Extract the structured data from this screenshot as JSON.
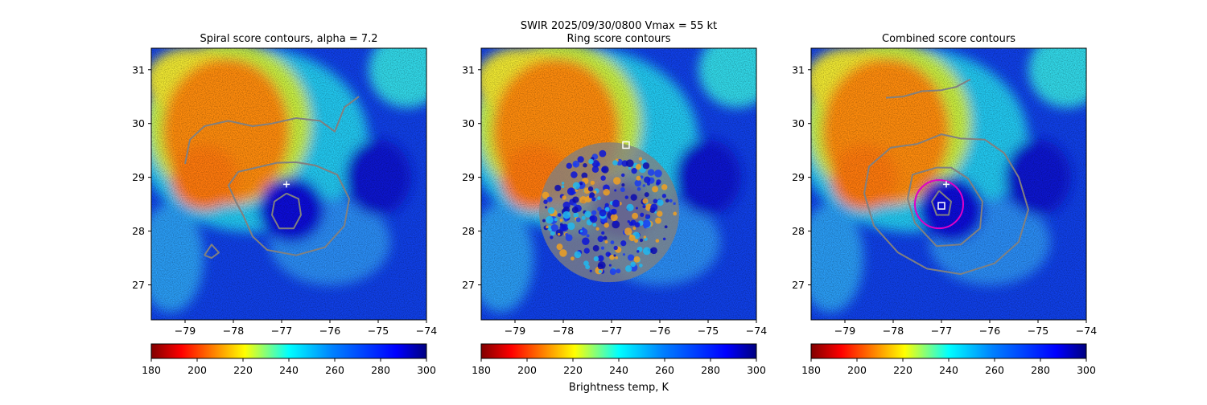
{
  "figure": {
    "suptitle_line1": "SWIR  2025/09/30/0800    Vmax = 55 kt",
    "colorbar_label": "Brightness temp, K"
  },
  "chart_data": [
    {
      "type": "heatmap",
      "title": "Spiral score contours, alpha =  7.2",
      "x_ticks": [
        "−79",
        "−78",
        "−77",
        "−76",
        "−75",
        "−74"
      ],
      "x_tick_values": [
        -79,
        -78,
        -77,
        -76,
        -75,
        -74
      ],
      "y_ticks": [
        "27",
        "28",
        "29",
        "30",
        "31"
      ],
      "y_tick_values": [
        27,
        28,
        29,
        30,
        31
      ],
      "xlim": [
        -79.7,
        -74.0
      ],
      "ylim": [
        26.35,
        31.4
      ],
      "markers": [
        {
          "symbol": "plus",
          "lon": -76.9,
          "lat": 28.87,
          "color": "#ffffff"
        }
      ],
      "contours": [
        {
          "name": "outer",
          "color": "#808080",
          "points": [
            [
              -79.0,
              29.25
            ],
            [
              -78.9,
              29.7
            ],
            [
              -78.6,
              29.95
            ],
            [
              -78.1,
              30.05
            ],
            [
              -77.6,
              29.95
            ],
            [
              -77.2,
              30.0
            ],
            [
              -76.7,
              30.1
            ],
            [
              -76.2,
              30.05
            ],
            [
              -75.9,
              29.85
            ],
            [
              -75.7,
              30.3
            ],
            [
              -75.4,
              30.5
            ]
          ]
        },
        {
          "name": "ring",
          "color": "#808080",
          "points": [
            [
              -77.1,
              29.27
            ],
            [
              -77.9,
              29.1
            ],
            [
              -78.1,
              28.85
            ],
            [
              -77.95,
              28.55
            ],
            [
              -77.8,
              28.3
            ],
            [
              -77.6,
              27.9
            ],
            [
              -77.3,
              27.65
            ],
            [
              -76.7,
              27.55
            ],
            [
              -76.1,
              27.7
            ],
            [
              -75.7,
              28.1
            ],
            [
              -75.6,
              28.6
            ],
            [
              -75.85,
              29.05
            ],
            [
              -76.3,
              29.22
            ],
            [
              -76.7,
              29.28
            ],
            [
              -77.1,
              29.27
            ]
          ]
        },
        {
          "name": "inner",
          "color": "#808080",
          "points": [
            [
              -76.9,
              28.7
            ],
            [
              -77.15,
              28.55
            ],
            [
              -77.2,
              28.3
            ],
            [
              -77.05,
              28.05
            ],
            [
              -76.75,
              28.05
            ],
            [
              -76.6,
              28.3
            ],
            [
              -76.65,
              28.6
            ],
            [
              -76.9,
              28.7
            ]
          ]
        },
        {
          "name": "blob",
          "color": "#808080",
          "points": [
            [
              -78.6,
              27.55
            ],
            [
              -78.45,
              27.75
            ],
            [
              -78.3,
              27.6
            ],
            [
              -78.45,
              27.5
            ],
            [
              -78.6,
              27.55
            ]
          ]
        }
      ],
      "colorbar": {
        "ticks": [
          "180",
          "200",
          "220",
          "240",
          "260",
          "280",
          "300"
        ],
        "tick_values": [
          180,
          200,
          220,
          240,
          260,
          280,
          300
        ],
        "range": [
          180,
          300
        ],
        "colormap": "jet_r"
      }
    },
    {
      "type": "heatmap",
      "title": "Ring score contours",
      "x_ticks": [
        "−79",
        "−78",
        "−77",
        "−76",
        "−75",
        "−74"
      ],
      "x_tick_values": [
        -79,
        -78,
        -77,
        -76,
        -75,
        -74
      ],
      "y_ticks": [
        "27",
        "28",
        "29",
        "30",
        "31"
      ],
      "y_tick_values": [
        27,
        28,
        29,
        30,
        31
      ],
      "xlim": [
        -79.7,
        -74.0
      ],
      "ylim": [
        26.35,
        31.4
      ],
      "markers": [
        {
          "symbol": "square",
          "lon": -76.7,
          "lat": 29.6,
          "color": "#ffffff"
        }
      ],
      "ring_region": {
        "center_lon": -77.05,
        "center_lat": 28.35,
        "radius_deg": 1.45
      },
      "colorbar": {
        "ticks": [
          "180",
          "200",
          "220",
          "240",
          "260",
          "280",
          "300"
        ],
        "tick_values": [
          180,
          200,
          220,
          240,
          260,
          280,
          300
        ],
        "range": [
          180,
          300
        ],
        "colormap": "jet_r"
      }
    },
    {
      "type": "heatmap",
      "title": "Combined score contours",
      "x_ticks": [
        "−79",
        "−78",
        "−77",
        "−76",
        "−75",
        "−74"
      ],
      "x_tick_values": [
        -79,
        -78,
        -77,
        -76,
        -75,
        -74
      ],
      "y_ticks": [
        "27",
        "28",
        "29",
        "30",
        "31"
      ],
      "y_tick_values": [
        27,
        28,
        29,
        30,
        31
      ],
      "xlim": [
        -79.7,
        -74.0
      ],
      "ylim": [
        26.35,
        31.4
      ],
      "markers": [
        {
          "symbol": "plus",
          "lon": -76.9,
          "lat": 28.87,
          "color": "#ffffff"
        },
        {
          "symbol": "square",
          "lon": -77.0,
          "lat": 28.47,
          "color": "#ffffff"
        }
      ],
      "circle": {
        "center_lon": -77.05,
        "center_lat": 28.5,
        "radius_deg": 0.5,
        "color": "#e000c8"
      },
      "contours": [
        {
          "name": "north",
          "color": "#808080",
          "points": [
            [
              -78.15,
              30.48
            ],
            [
              -77.8,
              30.5
            ],
            [
              -77.4,
              30.6
            ],
            [
              -77.0,
              30.62
            ],
            [
              -76.7,
              30.68
            ],
            [
              -76.4,
              30.82
            ]
          ]
        },
        {
          "name": "outer",
          "color": "#808080",
          "points": [
            [
              -77.5,
              29.62
            ],
            [
              -78.05,
              29.55
            ],
            [
              -78.5,
              29.2
            ],
            [
              -78.6,
              28.7
            ],
            [
              -78.4,
              28.1
            ],
            [
              -77.9,
              27.6
            ],
            [
              -77.3,
              27.3
            ],
            [
              -76.6,
              27.2
            ],
            [
              -75.9,
              27.4
            ],
            [
              -75.4,
              27.8
            ],
            [
              -75.2,
              28.4
            ],
            [
              -75.4,
              29.0
            ],
            [
              -75.7,
              29.45
            ],
            [
              -76.1,
              29.7
            ],
            [
              -76.6,
              29.72
            ],
            [
              -77.0,
              29.8
            ],
            [
              -77.5,
              29.62
            ]
          ]
        },
        {
          "name": "mid",
          "color": "#808080",
          "points": [
            [
              -77.1,
              29.18
            ],
            [
              -77.6,
              29.05
            ],
            [
              -77.7,
              28.6
            ],
            [
              -77.55,
              28.15
            ],
            [
              -77.1,
              27.72
            ],
            [
              -76.6,
              27.75
            ],
            [
              -76.2,
              28.05
            ],
            [
              -76.15,
              28.55
            ],
            [
              -76.45,
              28.98
            ],
            [
              -76.8,
              29.18
            ],
            [
              -77.1,
              29.18
            ]
          ]
        },
        {
          "name": "inner",
          "color": "#808080",
          "points": [
            [
              -77.05,
              28.75
            ],
            [
              -77.2,
              28.55
            ],
            [
              -77.1,
              28.3
            ],
            [
              -76.85,
              28.3
            ],
            [
              -76.8,
              28.55
            ],
            [
              -77.05,
              28.75
            ]
          ]
        }
      ],
      "colorbar": {
        "ticks": [
          "180",
          "200",
          "220",
          "240",
          "260",
          "280",
          "300"
        ],
        "tick_values": [
          180,
          200,
          220,
          240,
          260,
          280,
          300
        ],
        "range": [
          180,
          300
        ],
        "colormap": "jet_r"
      }
    }
  ]
}
